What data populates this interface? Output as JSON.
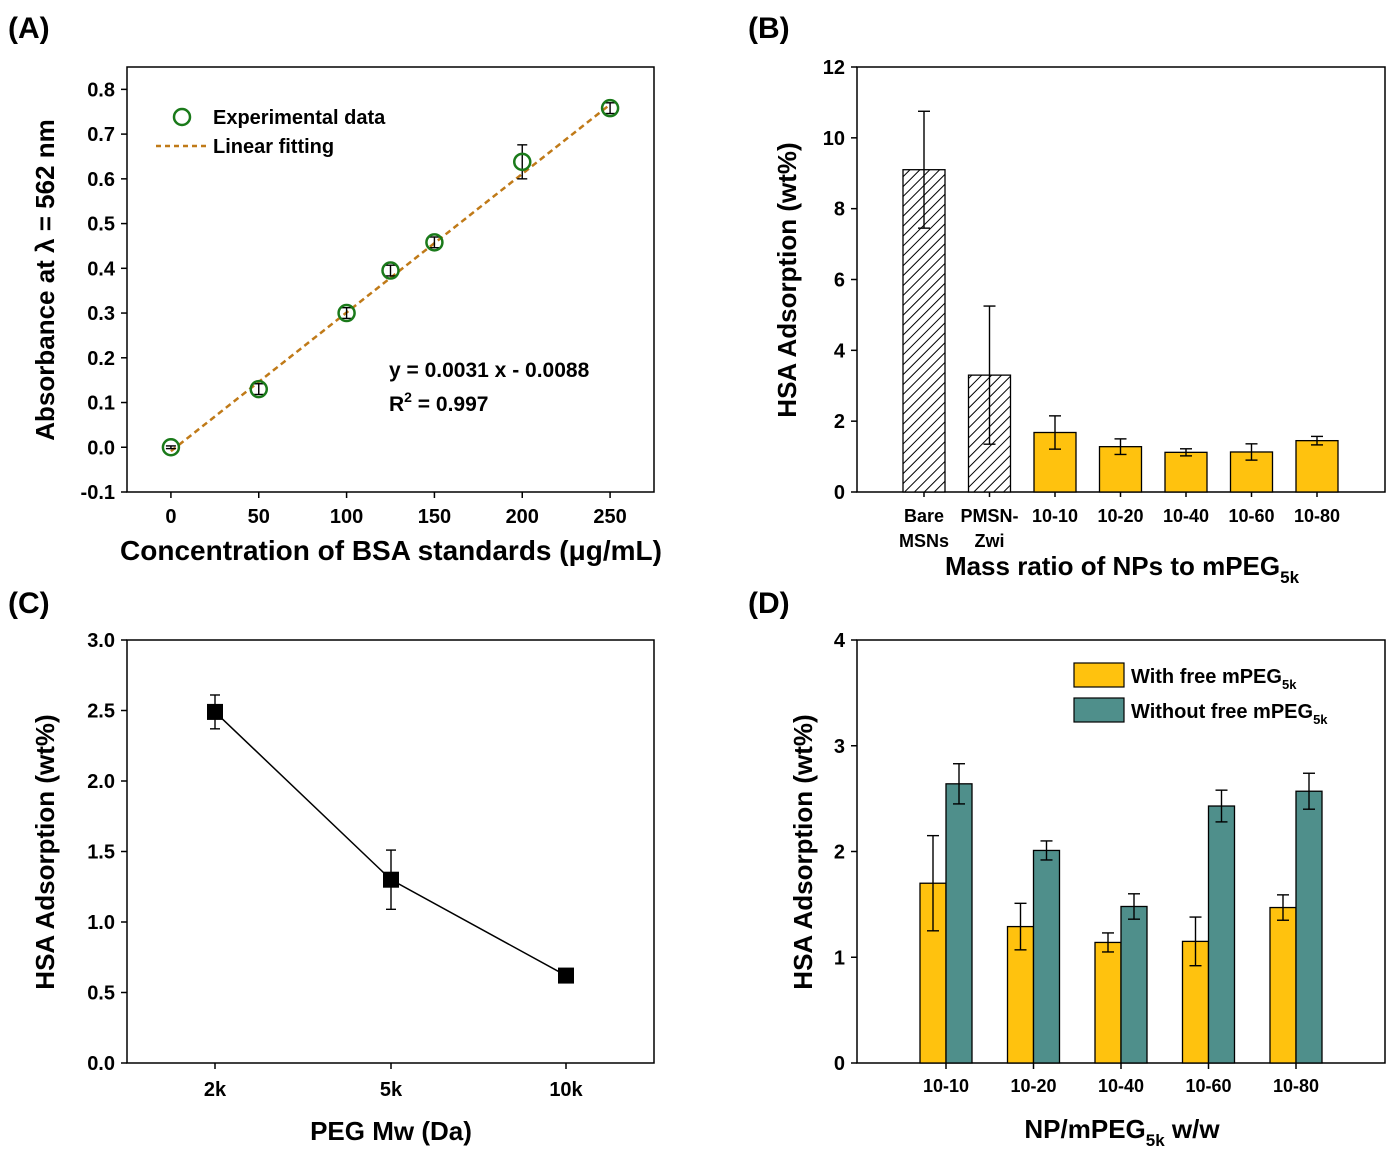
{
  "figure": {
    "colors": {
      "green": "#1a7a1a",
      "fit": "#c07a18",
      "yellow": "#ffc20e",
      "teal": "#4f8f8b",
      "black": "#000000"
    },
    "panels": [
      {
        "label": "(A)",
        "xlabel": "Concentration of BSA standards (μg/mL)",
        "ylabel": "Absorbance at λ = 562 nm",
        "legend": {
          "markers": "Experimental data",
          "line": "Linear fitting"
        },
        "equation": "y = 0.0031 x - 0.0088",
        "r2_prefix": "R",
        "r2_sup": "2",
        "r2_value": " = 0.997",
        "yticks": [
          "0.8",
          "0.7",
          "0.6",
          "0.5",
          "0.4",
          "0.3",
          "0.2",
          "0.1",
          "0.0",
          "-0.1"
        ],
        "xticks": [
          "0",
          "50",
          "100",
          "150",
          "200",
          "250"
        ]
      },
      {
        "label": "(B)",
        "xlabel_main": "Mass ratio of NPs to mPEG",
        "xlabel_sub": "5k",
        "ylabel": "HSA Adsorption (wt%)",
        "yticks": [
          "12",
          "10",
          "8",
          "6",
          "4",
          "2",
          "0"
        ],
        "categories": [
          [
            "Bare",
            "MSNs"
          ],
          [
            "PMSN-",
            "Zwi"
          ],
          [
            "10-10"
          ],
          [
            "10-20"
          ],
          [
            "10-40"
          ],
          [
            "10-60"
          ],
          [
            "10-80"
          ]
        ]
      },
      {
        "label": "(C)",
        "xlabel": "PEG Mw (Da)",
        "ylabel": "HSA Adsorption (wt%)",
        "yticks": [
          "3.0",
          "2.5",
          "2.0",
          "1.5",
          "1.0",
          "0.5",
          "0.0"
        ],
        "xticks": [
          "2k",
          "5k",
          "10k"
        ]
      },
      {
        "label": "(D)",
        "xlabel_main": "NP/mPEG",
        "xlabel_sub": "5k",
        "xlabel_tail": " w/w",
        "ylabel": "HSA Adsorption (wt%)",
        "yticks": [
          "4",
          "3",
          "2",
          "1",
          "0"
        ],
        "xticks": [
          "10-10",
          "10-20",
          "10-40",
          "10-60",
          "10-80"
        ],
        "legend": [
          {
            "main": "With free mPEG",
            "sub": "5k"
          },
          {
            "main": "Without free mPEG",
            "sub": "5k"
          }
        ]
      }
    ]
  },
  "chart_data": [
    {
      "type": "scatter",
      "title": "",
      "xlabel": "Concentration of BSA standards (μg/mL)",
      "ylabel": "Absorbance at λ = 562 nm",
      "xlim": [
        -25,
        275
      ],
      "ylim": [
        -0.1,
        0.85
      ],
      "series": [
        {
          "name": "Experimental data",
          "x": [
            0,
            50,
            100,
            125,
            150,
            200,
            250
          ],
          "y": [
            0.0,
            0.13,
            0.3,
            0.395,
            0.458,
            0.638,
            0.758
          ],
          "err": [
            0.003,
            0.012,
            0.012,
            0.012,
            0.012,
            0.038,
            0.012
          ]
        },
        {
          "name": "Linear fitting",
          "fit": {
            "slope": 0.0031,
            "intercept": -0.0088
          },
          "x": [
            0,
            250
          ],
          "y": [
            -0.0088,
            0.7662
          ]
        }
      ]
    },
    {
      "type": "bar",
      "title": "",
      "categories": [
        "Bare MSNs",
        "PMSN-Zwi",
        "10-10",
        "10-20",
        "10-40",
        "10-60",
        "10-80"
      ],
      "values": [
        9.1,
        3.3,
        1.68,
        1.28,
        1.12,
        1.13,
        1.45
      ],
      "errors": [
        1.65,
        1.95,
        0.47,
        0.22,
        0.1,
        0.23,
        0.12
      ],
      "fills": [
        "hatch",
        "hatch",
        "yellow",
        "yellow",
        "yellow",
        "yellow",
        "yellow"
      ],
      "xlabel": "Mass ratio of NPs to mPEG5k",
      "ylabel": "HSA Adsorption (wt%)",
      "ylim": [
        0,
        12
      ]
    },
    {
      "type": "line",
      "title": "",
      "categories": [
        "2k",
        "5k",
        "10k"
      ],
      "values": [
        2.49,
        1.3,
        0.62
      ],
      "errors": [
        0.12,
        0.21,
        0.03
      ],
      "xlabel": "PEG Mw (Da)",
      "ylabel": "HSA Adsorption (wt%)",
      "ylim": [
        0,
        3.0
      ]
    },
    {
      "type": "bar",
      "title": "",
      "categories": [
        "10-10",
        "10-20",
        "10-40",
        "10-60",
        "10-80"
      ],
      "series": [
        {
          "name": "With free mPEG5k",
          "values": [
            1.7,
            1.29,
            1.14,
            1.15,
            1.47
          ],
          "errors": [
            0.45,
            0.22,
            0.09,
            0.23,
            0.12
          ]
        },
        {
          "name": "Without free mPEG5k",
          "values": [
            2.64,
            2.01,
            1.48,
            2.43,
            2.57
          ],
          "errors": [
            0.19,
            0.09,
            0.12,
            0.15,
            0.17
          ]
        }
      ],
      "xlabel": "NP/mPEG5k w/w",
      "ylabel": "HSA Adsorption (wt%)",
      "ylim": [
        0,
        4
      ]
    }
  ]
}
